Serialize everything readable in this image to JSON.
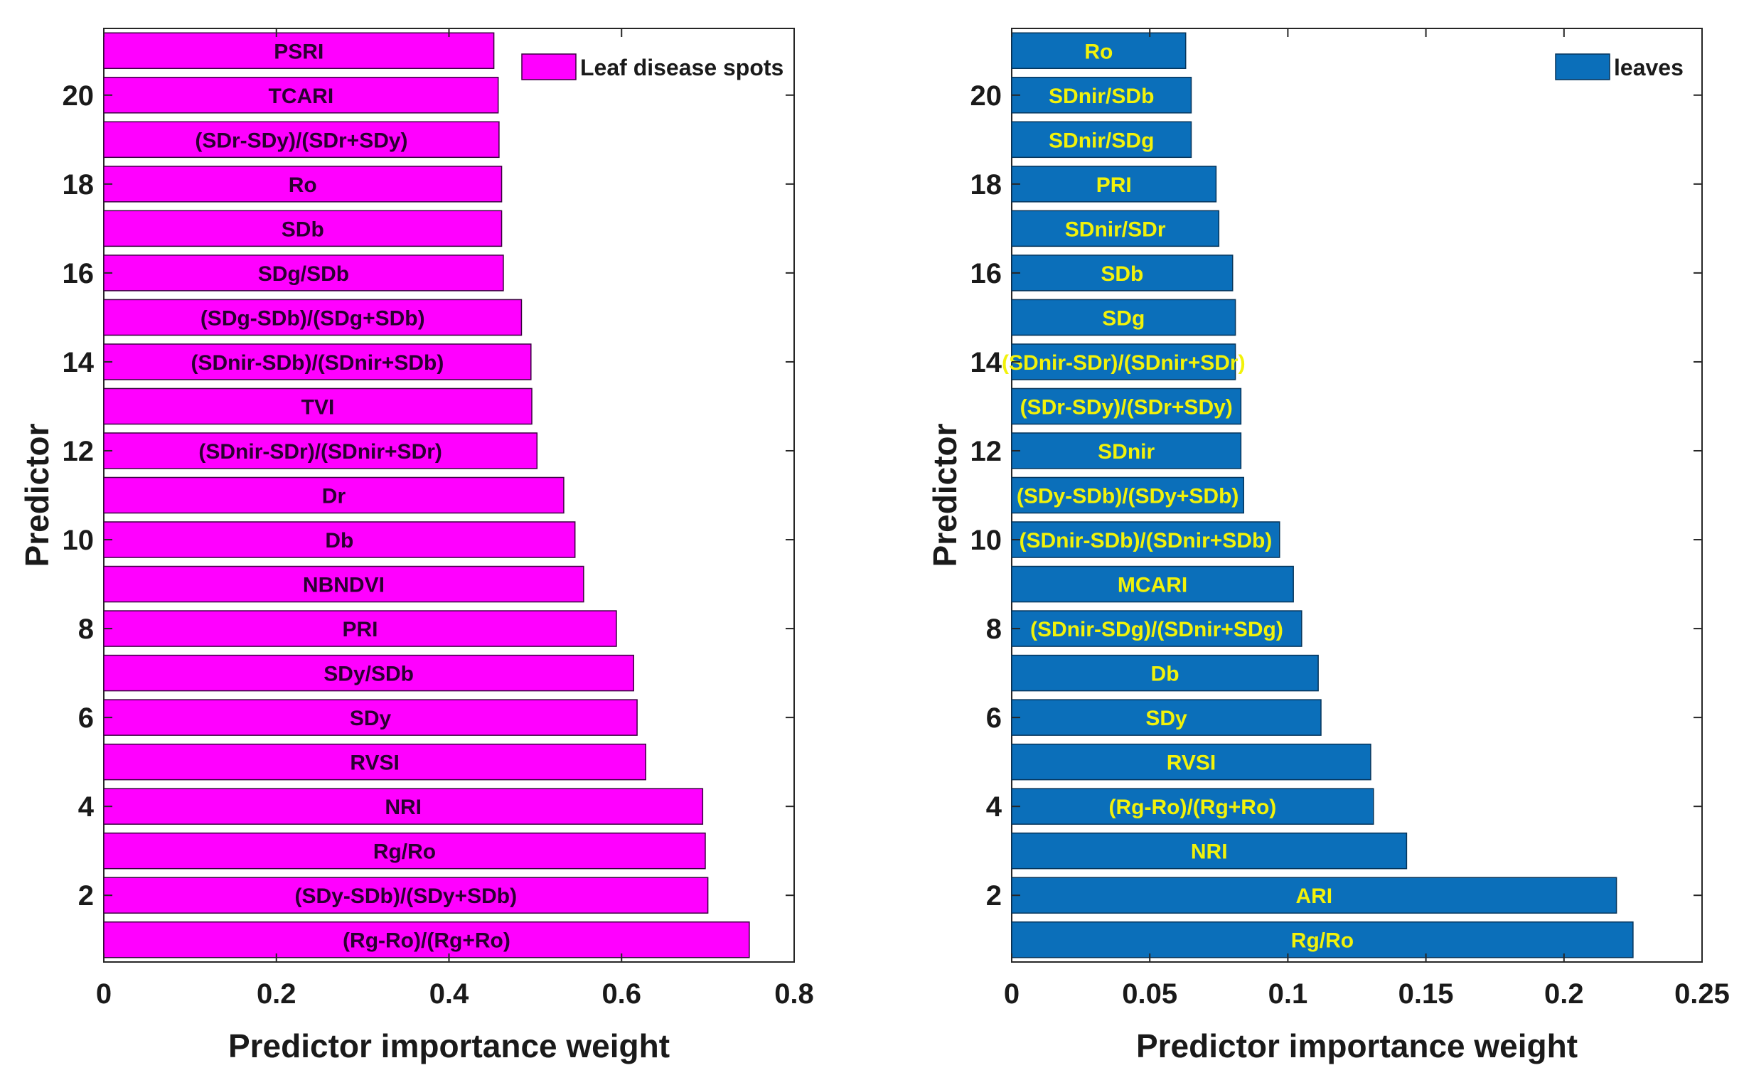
{
  "chart_data": [
    {
      "type": "bar",
      "orientation": "horizontal",
      "xlabel": "Predictor importance weight",
      "ylabel": "Predictor",
      "xlim": [
        0,
        0.8
      ],
      "xticks": [
        "0",
        "0.2",
        "0.4",
        "0.6",
        "0.8"
      ],
      "ylim": [
        0.5,
        21.5
      ],
      "yticks": [
        "2",
        "4",
        "6",
        "8",
        "10",
        "12",
        "14",
        "16",
        "18",
        "20"
      ],
      "grid": false,
      "legend": {
        "position": "top-right",
        "entries": [
          "Leaf disease spots"
        ]
      },
      "colors": {
        "bar": "#ff00ff",
        "bar_edge": "#3a0040",
        "label": "#2a0030"
      },
      "series": [
        {
          "name": "Leaf disease spots",
          "points": [
            {
              "y": 1,
              "label": "(Rg-Ro)/(Rg+Ro)",
              "value": 0.748
            },
            {
              "y": 2,
              "label": "(SDy-SDb)/(SDy+SDb)",
              "value": 0.7
            },
            {
              "y": 3,
              "label": "Rg/Ro",
              "value": 0.697
            },
            {
              "y": 4,
              "label": "NRI",
              "value": 0.694
            },
            {
              "y": 5,
              "label": "RVSI",
              "value": 0.628
            },
            {
              "y": 6,
              "label": "SDy",
              "value": 0.618
            },
            {
              "y": 7,
              "label": "SDy/SDb",
              "value": 0.614
            },
            {
              "y": 8,
              "label": "PRI",
              "value": 0.594
            },
            {
              "y": 9,
              "label": "NBNDVI",
              "value": 0.556
            },
            {
              "y": 10,
              "label": "Db",
              "value": 0.546
            },
            {
              "y": 11,
              "label": "Dr",
              "value": 0.533
            },
            {
              "y": 12,
              "label": "(SDnir-SDr)/(SDnir+SDr)",
              "value": 0.502
            },
            {
              "y": 13,
              "label": "TVI",
              "value": 0.496
            },
            {
              "y": 14,
              "label": "(SDnir-SDb)/(SDnir+SDb)",
              "value": 0.495
            },
            {
              "y": 15,
              "label": "(SDg-SDb)/(SDg+SDb)",
              "value": 0.484
            },
            {
              "y": 16,
              "label": "SDg/SDb",
              "value": 0.463
            },
            {
              "y": 17,
              "label": "SDb",
              "value": 0.461
            },
            {
              "y": 18,
              "label": "Ro",
              "value": 0.461
            },
            {
              "y": 19,
              "label": "(SDr-SDy)/(SDr+SDy)",
              "value": 0.458
            },
            {
              "y": 20,
              "label": "TCARI",
              "value": 0.457
            },
            {
              "y": 21,
              "label": "PSRI",
              "value": 0.452
            }
          ]
        }
      ]
    },
    {
      "type": "bar",
      "orientation": "horizontal",
      "xlabel": "Predictor importance weight",
      "ylabel": "Predictor",
      "xlim": [
        0,
        0.25
      ],
      "xticks": [
        "0",
        "0.05",
        "0.1",
        "0.15",
        "0.2",
        "0.25"
      ],
      "ylim": [
        0.5,
        21.5
      ],
      "yticks": [
        "2",
        "4",
        "6",
        "8",
        "10",
        "12",
        "14",
        "16",
        "18",
        "20"
      ],
      "grid": false,
      "legend": {
        "position": "top-right",
        "entries": [
          "leaves"
        ]
      },
      "colors": {
        "bar": "#0b6fba",
        "bar_edge": "#05345a",
        "label": "#f2f20a"
      },
      "series": [
        {
          "name": "leaves",
          "points": [
            {
              "y": 1,
              "label": "Rg/Ro",
              "value": 0.225
            },
            {
              "y": 2,
              "label": "ARI",
              "value": 0.219
            },
            {
              "y": 3,
              "label": "NRI",
              "value": 0.143
            },
            {
              "y": 4,
              "label": "(Rg-Ro)/(Rg+Ro)",
              "value": 0.131
            },
            {
              "y": 5,
              "label": "RVSI",
              "value": 0.13
            },
            {
              "y": 6,
              "label": "SDy",
              "value": 0.112
            },
            {
              "y": 7,
              "label": "Db",
              "value": 0.111
            },
            {
              "y": 8,
              "label": "(SDnir-SDg)/(SDnir+SDg)",
              "value": 0.105
            },
            {
              "y": 9,
              "label": "MCARI",
              "value": 0.102
            },
            {
              "y": 10,
              "label": "(SDnir-SDb)/(SDnir+SDb)",
              "value": 0.097
            },
            {
              "y": 11,
              "label": "(SDy-SDb)/(SDy+SDb)",
              "value": 0.084
            },
            {
              "y": 12,
              "label": "SDnir",
              "value": 0.083
            },
            {
              "y": 13,
              "label": "(SDr-SDy)/(SDr+SDy)",
              "value": 0.083
            },
            {
              "y": 14,
              "label": "(SDnir-SDr)/(SDnir+SDr)",
              "value": 0.081
            },
            {
              "y": 15,
              "label": "SDg",
              "value": 0.081
            },
            {
              "y": 16,
              "label": "SDb",
              "value": 0.08
            },
            {
              "y": 17,
              "label": "SDnir/SDr",
              "value": 0.075
            },
            {
              "y": 18,
              "label": "PRI",
              "value": 0.074
            },
            {
              "y": 19,
              "label": "SDnir/SDg",
              "value": 0.065
            },
            {
              "y": 20,
              "label": "SDnir/SDb",
              "value": 0.065
            },
            {
              "y": 21,
              "label": "Ro",
              "value": 0.063
            }
          ]
        }
      ]
    }
  ]
}
